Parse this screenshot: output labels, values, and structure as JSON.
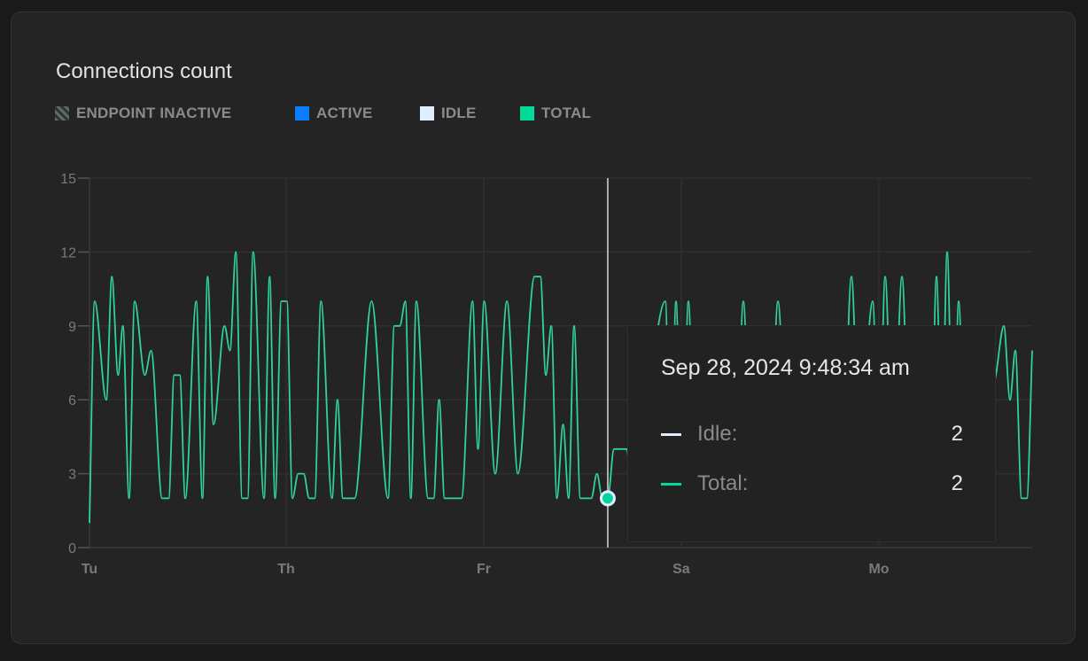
{
  "card": {
    "title": "Connections count"
  },
  "legend": [
    {
      "label": "ENDPOINT INACTIVE",
      "swatch": "hatched",
      "color": "#5c6b66"
    },
    {
      "label": "ACTIVE",
      "color": "#0a7cff"
    },
    {
      "label": "IDLE",
      "color": "#e1edff"
    },
    {
      "label": "TOTAL",
      "color": "#00d99a"
    }
  ],
  "tooltip": {
    "date": "Sep 28, 2024 9:48:34 am",
    "rows": [
      {
        "label": "Idle:",
        "value": "2",
        "color": "#e1edff"
      },
      {
        "label": "Total:",
        "value": "2",
        "color": "#00d99a"
      }
    ]
  },
  "chart_data": {
    "type": "line",
    "title": "Connections count",
    "xlabel": "",
    "ylabel": "",
    "ylim": [
      0,
      15
    ],
    "yticks": [
      0,
      3,
      6,
      9,
      12,
      15
    ],
    "xlim": [
      "2024-09-23T03:38",
      "2024-10-02T17:08"
    ],
    "xticks": [
      {
        "label": "Tu",
        "x": "2024-09-23T03:38"
      },
      {
        "label": "Th",
        "x": "2024-09-25T03:31"
      },
      {
        "label": "Fr",
        "x": "2024-09-27T03:37"
      },
      {
        "label": "Sa",
        "x": "2024-09-29T03:42"
      },
      {
        "label": "Mo",
        "x": "2024-10-01T03:49"
      }
    ],
    "grid": true,
    "legend_position": "top-left",
    "hover_x": "2024-09-28T09:48:34",
    "series": [
      {
        "name": "TOTAL",
        "color": "#2fd39c",
        "points": [
          [
            "2024-09-23T03:38",
            1
          ],
          [
            "2024-09-23T04:53",
            10
          ],
          [
            "2024-09-23T07:44",
            6
          ],
          [
            "2024-09-23T09:05",
            11
          ],
          [
            "2024-09-23T10:36",
            7
          ],
          [
            "2024-09-23T11:46",
            9
          ],
          [
            "2024-09-23T13:16",
            2
          ],
          [
            "2024-09-23T14:37",
            10
          ],
          [
            "2024-09-23T17:07",
            7
          ],
          [
            "2024-09-23T18:38",
            8
          ],
          [
            "2024-09-23T21:19",
            2
          ],
          [
            "2024-09-23T22:55",
            2
          ],
          [
            "2024-09-24T00:15",
            7
          ],
          [
            "2024-09-24T01:37",
            7
          ],
          [
            "2024-09-24T02:57",
            2
          ],
          [
            "2024-09-24T05:37",
            10
          ],
          [
            "2024-09-24T07:08",
            2
          ],
          [
            "2024-09-24T08:23",
            11
          ],
          [
            "2024-09-24T09:50",
            5
          ],
          [
            "2024-09-24T12:30",
            9
          ],
          [
            "2024-09-24T13:50",
            8
          ],
          [
            "2024-09-24T15:16",
            12
          ],
          [
            "2024-09-24T16:48",
            2
          ],
          [
            "2024-09-24T18:08",
            2
          ],
          [
            "2024-09-24T19:28",
            12
          ],
          [
            "2024-09-24T22:08",
            2
          ],
          [
            "2024-09-24T23:29",
            11
          ],
          [
            "2024-09-25T00:49",
            2
          ],
          [
            "2024-09-25T02:21",
            10
          ],
          [
            "2024-09-25T03:41",
            10
          ],
          [
            "2024-09-25T05:02",
            2
          ],
          [
            "2024-09-25T06:27",
            3
          ],
          [
            "2024-09-25T07:47",
            3
          ],
          [
            "2024-09-25T09:07",
            2
          ],
          [
            "2024-09-25T10:28",
            2
          ],
          [
            "2024-09-25T11:59",
            10
          ],
          [
            "2024-09-25T14:40",
            2
          ],
          [
            "2024-09-25T16:00",
            6
          ],
          [
            "2024-09-25T17:20",
            2
          ],
          [
            "2024-09-25T20:11",
            2
          ],
          [
            "2024-09-26T00:19",
            10
          ],
          [
            "2024-09-26T04:19",
            2
          ],
          [
            "2024-09-26T05:51",
            9
          ],
          [
            "2024-09-26T07:11",
            9
          ],
          [
            "2024-09-26T08:32",
            10
          ],
          [
            "2024-09-26T09:52",
            2
          ],
          [
            "2024-09-26T11:12",
            10
          ],
          [
            "2024-09-26T14:04",
            2
          ],
          [
            "2024-09-26T15:25",
            2
          ],
          [
            "2024-09-26T16:45",
            6
          ],
          [
            "2024-09-26T18:05",
            2
          ],
          [
            "2024-09-26T22:12",
            2
          ],
          [
            "2024-09-27T00:53",
            10
          ],
          [
            "2024-09-27T02:13",
            4
          ],
          [
            "2024-09-27T03:43",
            10
          ],
          [
            "2024-09-27T06:25",
            3
          ],
          [
            "2024-09-27T09:16",
            10
          ],
          [
            "2024-09-27T11:56",
            3
          ],
          [
            "2024-09-27T15:59",
            11
          ],
          [
            "2024-09-27T17:24",
            11
          ],
          [
            "2024-09-27T18:44",
            7
          ],
          [
            "2024-09-27T20:04",
            9
          ],
          [
            "2024-09-27T21:25",
            2
          ],
          [
            "2024-09-27T22:56",
            5
          ],
          [
            "2024-09-28T00:17",
            2
          ],
          [
            "2024-09-28T01:37",
            9
          ],
          [
            "2024-09-28T03:08",
            2
          ],
          [
            "2024-09-28T05:48",
            2
          ],
          [
            "2024-09-28T07:10",
            3
          ],
          [
            "2024-09-28T08:30",
            2
          ],
          [
            "2024-09-28T09:48:34",
            2
          ],
          [
            "2024-09-28T11:20",
            4
          ],
          [
            "2024-09-28T14:20",
            4
          ],
          [
            "2024-09-28T16:04",
            2
          ],
          [
            "2024-09-28T23:50",
            10
          ],
          [
            "2024-09-29T01:08",
            2
          ],
          [
            "2024-09-29T02:25",
            10
          ],
          [
            "2024-09-29T03:56",
            2
          ],
          [
            "2024-09-29T05:26",
            10
          ],
          [
            "2024-09-29T07:10",
            2
          ],
          [
            "2024-09-29T16:53",
            2
          ],
          [
            "2024-09-29T18:49",
            10
          ],
          [
            "2024-09-29T20:46",
            2
          ],
          [
            "2024-09-30T01:04",
            2
          ],
          [
            "2024-09-30T03:14",
            10
          ],
          [
            "2024-09-30T05:49",
            2
          ],
          [
            "2024-09-30T18:46",
            2
          ],
          [
            "2024-09-30T21:08",
            11
          ],
          [
            "2024-09-30T23:04",
            4
          ],
          [
            "2024-10-01T02:19",
            10
          ],
          [
            "2024-10-01T03:49",
            3
          ],
          [
            "2024-10-01T05:20",
            11
          ],
          [
            "2024-10-01T07:16",
            3
          ],
          [
            "2024-10-01T09:26",
            11
          ],
          [
            "2024-10-01T11:35",
            2
          ],
          [
            "2024-10-01T16:20",
            2
          ],
          [
            "2024-10-01T17:50",
            11
          ],
          [
            "2024-10-01T19:08",
            4
          ],
          [
            "2024-10-01T20:26",
            12
          ],
          [
            "2024-10-01T21:56",
            3
          ],
          [
            "2024-10-01T23:14",
            10
          ],
          [
            "2024-10-02T00:58",
            2
          ],
          [
            "2024-10-02T08:17",
            7
          ],
          [
            "2024-10-02T10:14",
            9
          ],
          [
            "2024-10-02T11:44",
            6
          ],
          [
            "2024-10-02T13:02",
            8
          ],
          [
            "2024-10-02T14:33",
            2
          ],
          [
            "2024-10-02T15:50",
            2
          ],
          [
            "2024-10-02T17:08",
            8
          ]
        ]
      }
    ]
  }
}
